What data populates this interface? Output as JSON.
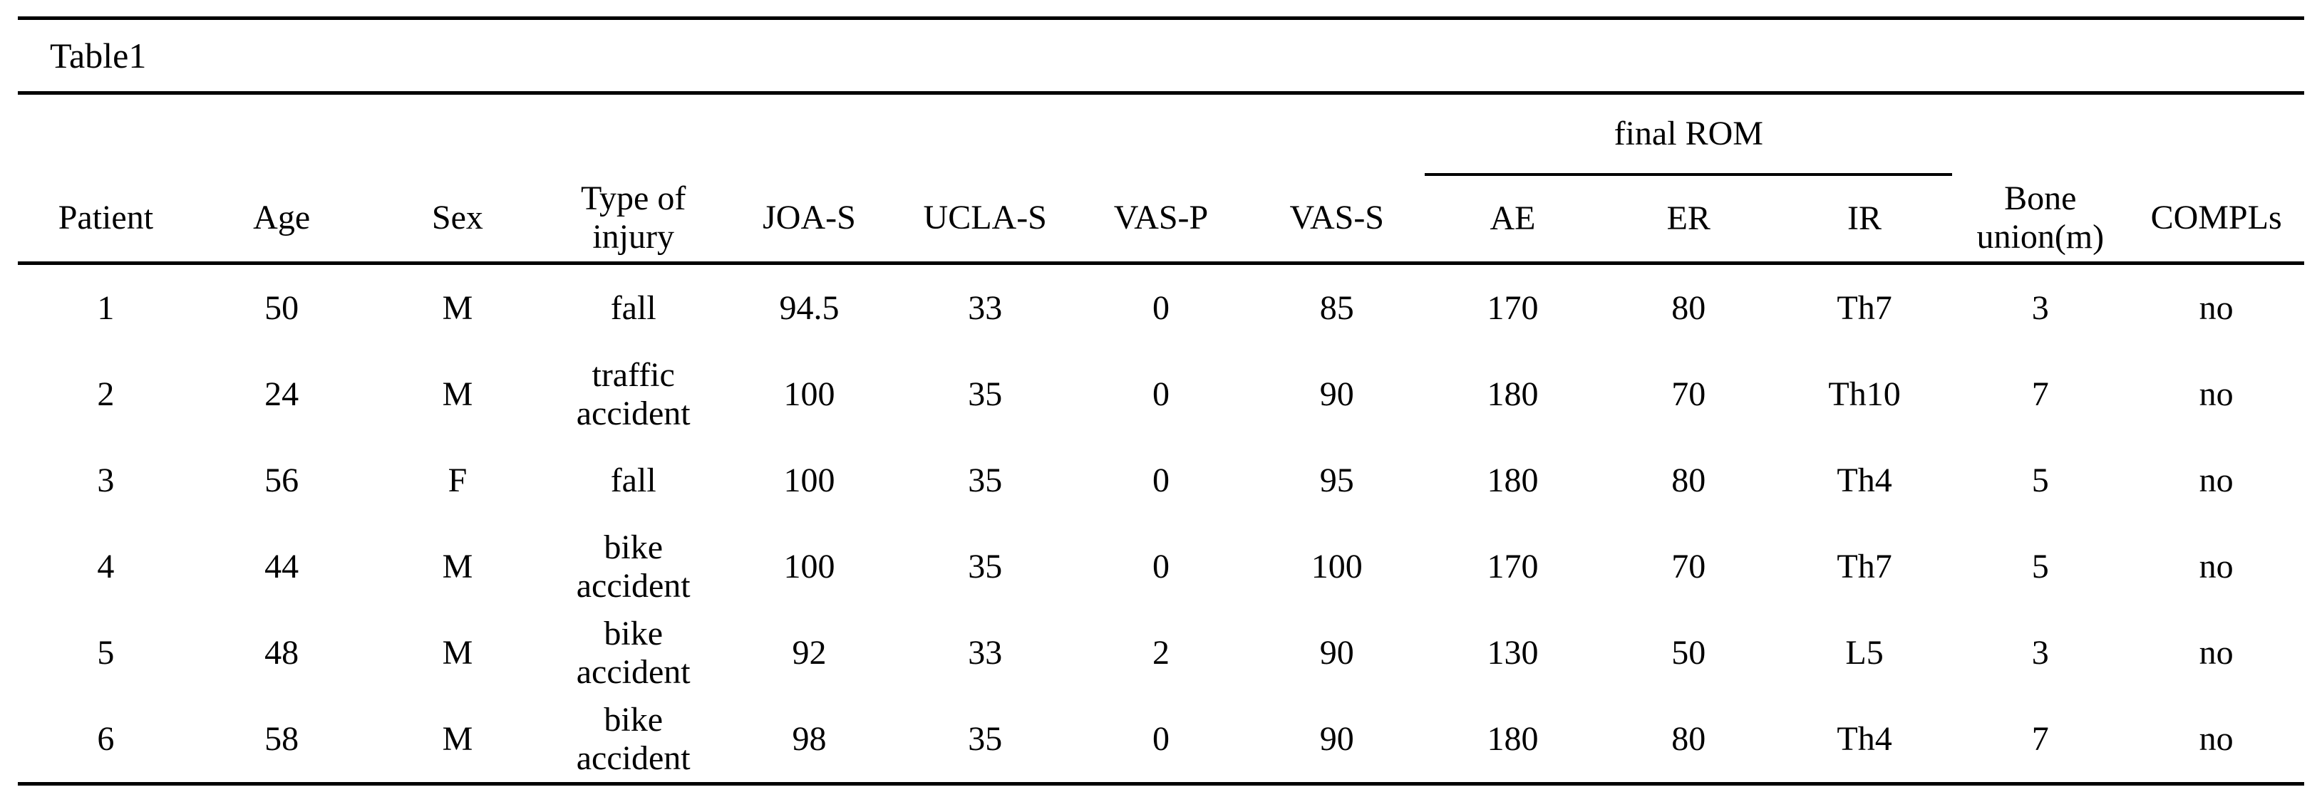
{
  "page": {
    "title": "Table1"
  },
  "colors": {
    "background": "#ffffff",
    "text": "#000000",
    "rule": "#000000"
  },
  "table": {
    "group_header": {
      "final_rom": "final ROM"
    },
    "columns": [
      "Patient",
      "Age",
      "Sex",
      "Type of injury",
      "JOA-S",
      "UCLA-S",
      "VAS-P",
      "VAS-S",
      "AE",
      "ER",
      "IR",
      "Bone union(m)",
      "COMPLs"
    ],
    "rows": [
      [
        "1",
        "50",
        "M",
        "fall",
        "94.5",
        "33",
        "0",
        "85",
        "170",
        "80",
        "Th7",
        "3",
        "no"
      ],
      [
        "2",
        "24",
        "M",
        "traffic accident",
        "100",
        "35",
        "0",
        "90",
        "180",
        "70",
        "Th10",
        "7",
        "no"
      ],
      [
        "3",
        "56",
        "F",
        "fall",
        "100",
        "35",
        "0",
        "95",
        "180",
        "80",
        "Th4",
        "5",
        "no"
      ],
      [
        "4",
        "44",
        "M",
        "bike accident",
        "100",
        "35",
        "0",
        "100",
        "170",
        "70",
        "Th7",
        "5",
        "no"
      ],
      [
        "5",
        "48",
        "M",
        "bike accident",
        "92",
        "33",
        "2",
        "90",
        "130",
        "50",
        "L5",
        "3",
        "no"
      ],
      [
        "6",
        "58",
        "M",
        "bike accident",
        "98",
        "35",
        "0",
        "90",
        "180",
        "80",
        "Th4",
        "7",
        "no"
      ]
    ]
  }
}
